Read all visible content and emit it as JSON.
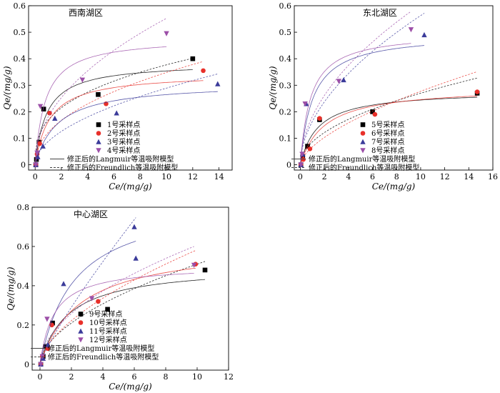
{
  "chart_data": [
    {
      "type": "scatter",
      "title": "西南湖区",
      "xlabel": "Ce/(mg/g)",
      "ylabel": "Qe/(mg/g)",
      "xlim": [
        -0.5,
        15
      ],
      "ylim": [
        -0.02,
        0.6
      ],
      "xticks": [
        0,
        2,
        4,
        6,
        8,
        10,
        12,
        14
      ],
      "yticks": [
        0,
        0.1,
        0.2,
        0.3,
        0.4,
        0.5,
        0.6
      ],
      "legend_position": "bottom-left",
      "series": [
        {
          "name": "1号采样点",
          "marker": "square",
          "color": "#000000",
          "points": [
            [
              0.05,
              0.0
            ],
            [
              0.1,
              0.02
            ],
            [
              0.3,
              0.085
            ],
            [
              0.65,
              0.21
            ],
            [
              4.8,
              0.265
            ],
            [
              12.0,
              0.4
            ]
          ]
        },
        {
          "name": "2号采样点",
          "marker": "circle",
          "color": "#e8302a",
          "points": [
            [
              0.05,
              0.0
            ],
            [
              0.15,
              0.04
            ],
            [
              0.35,
              0.08
            ],
            [
              1.1,
              0.195
            ],
            [
              5.4,
              0.23
            ],
            [
              12.8,
              0.355
            ]
          ]
        },
        {
          "name": "3号采样点",
          "marker": "triangle-up",
          "color": "#3b3b9a",
          "points": [
            [
              0.05,
              0.0
            ],
            [
              0.2,
              0.03
            ],
            [
              0.6,
              0.07
            ],
            [
              1.5,
              0.175
            ],
            [
              6.2,
              0.195
            ],
            [
              13.9,
              0.305
            ]
          ]
        },
        {
          "name": "4号采样点",
          "marker": "triangle-down",
          "color": "#9c4fa8",
          "points": [
            [
              0.05,
              0.0
            ],
            [
              0.15,
              0.045
            ],
            [
              0.4,
              0.22
            ],
            [
              3.6,
              0.32
            ],
            [
              10.0,
              0.495
            ]
          ]
        }
      ],
      "legend_lines": [
        "修正后的Langmuir等温吸附模型",
        "修正后的Freundlich等温吸附模型"
      ]
    },
    {
      "type": "scatter",
      "title": "东北湖区",
      "xlabel": "Ce/(mg/g)",
      "ylabel": "Qe/(mg/g)",
      "xlim": [
        -0.5,
        16
      ],
      "ylim": [
        -0.02,
        0.6
      ],
      "xticks": [
        0,
        2,
        4,
        6,
        8,
        10,
        12,
        14,
        16
      ],
      "yticks": [
        0,
        0.1,
        0.2,
        0.3,
        0.4,
        0.5,
        0.6
      ],
      "legend_position": "bottom-right",
      "series": [
        {
          "name": "5号采样点",
          "marker": "square",
          "color": "#000000",
          "points": [
            [
              0.05,
              0.0
            ],
            [
              0.2,
              0.03
            ],
            [
              0.6,
              0.07
            ],
            [
              1.6,
              0.17
            ],
            [
              6.0,
              0.2
            ],
            [
              14.7,
              0.27
            ]
          ]
        },
        {
          "name": "6号采样点",
          "marker": "circle",
          "color": "#e8302a",
          "points": [
            [
              0.05,
              0.0
            ],
            [
              0.25,
              0.02
            ],
            [
              0.8,
              0.06
            ],
            [
              1.6,
              0.175
            ],
            [
              6.2,
              0.19
            ],
            [
              14.7,
              0.275
            ]
          ]
        },
        {
          "name": "7号采样点",
          "marker": "triangle-up",
          "color": "#3b3b9a",
          "points": [
            [
              0.05,
              0.0
            ],
            [
              0.2,
              0.04
            ],
            [
              0.5,
              0.23
            ],
            [
              3.6,
              0.32
            ],
            [
              10.3,
              0.49
            ]
          ]
        },
        {
          "name": "8号采样点",
          "marker": "triangle-down",
          "color": "#9c4fa8",
          "points": [
            [
              0.05,
              0.0
            ],
            [
              0.15,
              0.04
            ],
            [
              0.4,
              0.23
            ],
            [
              3.2,
              0.315
            ],
            [
              9.2,
              0.51
            ]
          ]
        }
      ],
      "legend_lines": [
        "修正后的Langmuir等温吸附模型",
        "修正后的Freundlich等温吸附模型"
      ]
    },
    {
      "type": "scatter",
      "title": "中心湖区",
      "xlabel": "Ce/(mg/g)",
      "ylabel": "Qe/(mg/g)",
      "xlim": [
        -0.5,
        12
      ],
      "ylim": [
        -0.03,
        0.8
      ],
      "xticks": [
        0,
        2,
        4,
        6,
        8,
        10,
        12
      ],
      "yticks": [
        0,
        0.2,
        0.4,
        0.6,
        0.8
      ],
      "legend_position": "bottom-right",
      "series": [
        {
          "name": "9号采样点",
          "marker": "square",
          "color": "#000000",
          "points": [
            [
              0.05,
              0.0
            ],
            [
              0.2,
              0.04
            ],
            [
              0.35,
              0.09
            ],
            [
              0.8,
              0.21
            ],
            [
              4.3,
              0.28
            ],
            [
              10.5,
              0.48
            ]
          ]
        },
        {
          "name": "10号采样点",
          "marker": "circle",
          "color": "#e8302a",
          "points": [
            [
              0.05,
              0.0
            ],
            [
              0.15,
              0.04
            ],
            [
              0.5,
              0.08
            ],
            [
              0.75,
              0.2
            ],
            [
              3.7,
              0.32
            ],
            [
              9.9,
              0.51
            ]
          ]
        },
        {
          "name": "11号采样点",
          "marker": "triangle-up",
          "color": "#3b3b9a",
          "points": [
            [
              0.05,
              0.0
            ],
            [
              0.2,
              0.03
            ],
            [
              0.5,
              0.1
            ],
            [
              1.5,
              0.41
            ],
            [
              6.0,
              0.7
            ],
            [
              6.1,
              0.54
            ]
          ]
        },
        {
          "name": "12号采样点",
          "marker": "triangle-down",
          "color": "#9c4fa8",
          "points": [
            [
              0.05,
              0.0
            ],
            [
              0.15,
              0.04
            ],
            [
              0.45,
              0.23
            ],
            [
              3.3,
              0.335
            ],
            [
              9.8,
              0.505
            ]
          ]
        }
      ],
      "legend_lines": [
        "修正后的Langmuir等温吸附模型",
        "修正后的Freundlich等温吸附模型"
      ]
    }
  ]
}
